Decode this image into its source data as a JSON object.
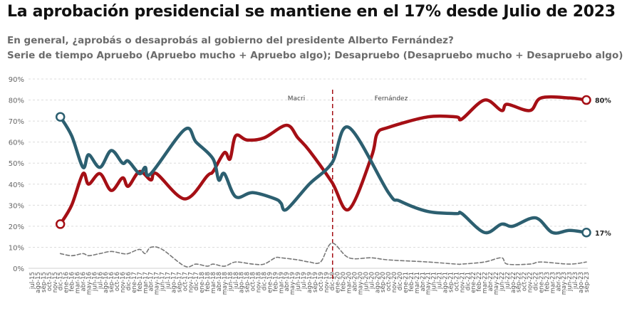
{
  "title": "La aprobación presidencial se mantiene en el 17% desde Julio de 2023",
  "subtitle1": "En general, ¿aprobás o desaprobás al gobierno del presidente Alberto Fernández?",
  "subtitle2": "Serie de tiempo Apruebo (Apruebo mucho + Apruebo algo); Desapruebo (Desapruebo mucho + Desapruebo algo)",
  "chart_data": {
    "type": "line",
    "ylim": [
      0,
      90
    ],
    "yticks": [
      "0%",
      "10%",
      "20%",
      "30%",
      "40%",
      "50%",
      "60%",
      "70%",
      "80%",
      "90%"
    ],
    "grid": true,
    "months": [
      "jul-15",
      "ago-15",
      "sep-15",
      "oct-15",
      "nov-15",
      "dic-15",
      "ene-16",
      "feb-16",
      "mar-16",
      "abr-16",
      "may-16",
      "jun-16",
      "jul-16",
      "ago-16",
      "sep-16",
      "oct-16",
      "nov-16",
      "dic-16",
      "ene-17",
      "feb-17",
      "mar-17",
      "abr-17",
      "may-17",
      "jun-17",
      "jul-17",
      "ago-17",
      "sep-17",
      "oct-17",
      "nov-17",
      "dic-17",
      "ene-18",
      "feb-18",
      "mar-18",
      "abr-18",
      "may-18",
      "jun-18",
      "jul-18",
      "ago-18",
      "sep-18",
      "oct-18",
      "nov-18",
      "dic-18",
      "ene-19",
      "feb-19",
      "mar-19",
      "abr-19",
      "may-19",
      "jun-19",
      "jul-19",
      "ago-19",
      "sep-19",
      "oct-19",
      "nov-19",
      "dic-19",
      "ene-20",
      "feb-20",
      "mar-20",
      "abr-20",
      "may-20",
      "jun-20",
      "jul-20",
      "ago-20",
      "sep-20",
      "oct-20",
      "nov-20",
      "dic-20",
      "ene-21",
      "feb-21",
      "mar-21",
      "abr-21",
      "may-21",
      "jun-21",
      "jul-21",
      "ago-21",
      "sep-21",
      "oct-21",
      "nov-21",
      "dic-21",
      "ene-22",
      "feb-22",
      "mar-22",
      "abr-22",
      "may-22",
      "jun-22",
      "jul-22",
      "ago-22",
      "sep-22",
      "oct-22",
      "nov-22",
      "dic-22",
      "ene-23",
      "feb-23",
      "mar-23",
      "abr-23",
      "may-23",
      "jun-23",
      "jul-23",
      "ago-23",
      "sep-23"
    ],
    "annotations": {
      "divider_at": "dic-19",
      "left_label": "Macri",
      "right_label": "Fernández"
    },
    "series": [
      {
        "key": "apruebo",
        "color": "#2c5f70",
        "end_label": "17%",
        "points": [
          [
            "dic-15",
            72
          ],
          [
            "feb-16",
            63
          ],
          [
            "abr-16",
            48
          ],
          [
            "may-16",
            54
          ],
          [
            "jul-16",
            48
          ],
          [
            "sep-16",
            56
          ],
          [
            "nov-16",
            50
          ],
          [
            "dic-16",
            51
          ],
          [
            "feb-17",
            45
          ],
          [
            "mar-17",
            48
          ],
          [
            "abr-17",
            45
          ],
          [
            "oct-17",
            66
          ],
          [
            "dic-17",
            60
          ],
          [
            "mar-18",
            52
          ],
          [
            "abr-18",
            42
          ],
          [
            "may-18",
            45
          ],
          [
            "jul-18",
            34
          ],
          [
            "oct-18",
            36
          ],
          [
            "feb-19",
            33
          ],
          [
            "mar-19",
            31
          ],
          [
            "abr-19",
            28
          ],
          [
            "ago-19",
            40
          ],
          [
            "dic-19",
            50
          ],
          [
            "mar-20",
            67
          ],
          [
            "oct-20",
            36
          ],
          [
            "dic-20",
            32
          ],
          [
            "may-21",
            27
          ],
          [
            "oct-21",
            26
          ],
          [
            "nov-21",
            26
          ],
          [
            "mar-22",
            17
          ],
          [
            "jun-22",
            21
          ],
          [
            "ago-22",
            20
          ],
          [
            "dic-22",
            24
          ],
          [
            "mar-23",
            17
          ],
          [
            "jun-23",
            18
          ],
          [
            "sep-23",
            17
          ]
        ]
      },
      {
        "key": "desapruebo",
        "color": "#a50f15",
        "end_label": "80%",
        "points": [
          [
            "dic-15",
            21
          ],
          [
            "feb-16",
            30
          ],
          [
            "abr-16",
            45
          ],
          [
            "may-16",
            40
          ],
          [
            "jul-16",
            45
          ],
          [
            "sep-16",
            37
          ],
          [
            "nov-16",
            43
          ],
          [
            "dic-16",
            39
          ],
          [
            "feb-17",
            46
          ],
          [
            "abr-17",
            42
          ],
          [
            "may-17",
            45
          ],
          [
            "oct-17",
            33
          ],
          [
            "feb-18",
            44
          ],
          [
            "mar-18",
            46
          ],
          [
            "may-18",
            55
          ],
          [
            "jun-18",
            52
          ],
          [
            "jul-18",
            63
          ],
          [
            "sep-18",
            61
          ],
          [
            "dic-18",
            62
          ],
          [
            "abr-19",
            68
          ],
          [
            "jun-19",
            62
          ],
          [
            "ago-19",
            56
          ],
          [
            "dic-19",
            41
          ],
          [
            "mar-20",
            28
          ],
          [
            "jul-20",
            53
          ],
          [
            "ago-20",
            64
          ],
          [
            "oct-20",
            67
          ],
          [
            "may-21",
            72
          ],
          [
            "oct-21",
            72
          ],
          [
            "nov-21",
            71
          ],
          [
            "mar-22",
            80
          ],
          [
            "jun-22",
            75
          ],
          [
            "jul-22",
            78
          ],
          [
            "nov-22",
            75
          ],
          [
            "ene-23",
            81
          ],
          [
            "jun-23",
            81
          ],
          [
            "sep-23",
            80
          ]
        ]
      },
      {
        "key": "ns-nc",
        "color": "#777777",
        "dashed": true,
        "points": [
          [
            "dic-15",
            7
          ],
          [
            "feb-16",
            6
          ],
          [
            "abr-16",
            7
          ],
          [
            "may-16",
            6
          ],
          [
            "jul-16",
            7
          ],
          [
            "sep-16",
            8
          ],
          [
            "nov-16",
            7
          ],
          [
            "dic-16",
            7
          ],
          [
            "feb-17",
            9
          ],
          [
            "mar-17",
            7
          ],
          [
            "abr-17",
            10
          ],
          [
            "jun-17",
            9
          ],
          [
            "oct-17",
            1
          ],
          [
            "dic-17",
            2
          ],
          [
            "feb-18",
            1
          ],
          [
            "mar-18",
            2
          ],
          [
            "may-18",
            1
          ],
          [
            "jul-18",
            3
          ],
          [
            "oct-18",
            2
          ],
          [
            "dic-18",
            2
          ],
          [
            "feb-19",
            5
          ],
          [
            "mar-19",
            5
          ],
          [
            "jun-19",
            4
          ],
          [
            "ago-19",
            3
          ],
          [
            "oct-19",
            3
          ],
          [
            "dic-19",
            12
          ],
          [
            "mar-20",
            5
          ],
          [
            "jul-20",
            5
          ],
          [
            "oct-20",
            4
          ],
          [
            "may-21",
            3
          ],
          [
            "oct-21",
            2
          ],
          [
            "nov-21",
            2
          ],
          [
            "mar-22",
            3
          ],
          [
            "jun-22",
            5
          ],
          [
            "jul-22",
            2
          ],
          [
            "nov-22",
            2
          ],
          [
            "ene-23",
            3
          ],
          [
            "jun-23",
            2
          ],
          [
            "sep-23",
            3
          ]
        ]
      }
    ]
  }
}
